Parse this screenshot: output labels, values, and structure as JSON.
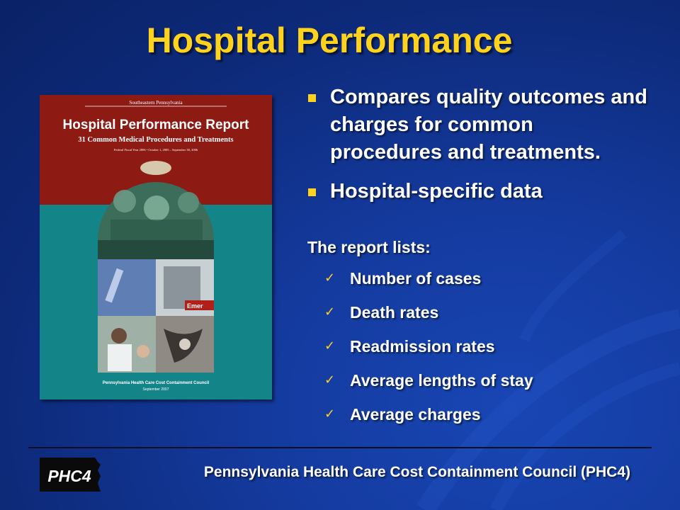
{
  "slide": {
    "title": "Hospital Performance",
    "bullets": [
      "Compares quality outcomes and charges for common procedures and treatments.",
      "Hospital-specific data"
    ],
    "lists_label": "The report lists:",
    "checklist": [
      "Number of cases",
      "Death rates",
      "Readmission rates",
      "Average lengths of stay",
      "Average charges"
    ],
    "footer": "Pennsylvania Health Care Cost Containment Council  (PHC4)"
  },
  "cover": {
    "region": "Southeastern Pennsylvania",
    "title": "Hospital Performance Report",
    "subtitle": "31 Common Medical Procedures and Treatments",
    "period": "Federal Fiscal Year 2006 • October 1, 2005 – September 30, 2006",
    "sign_text": "Emer",
    "publisher": "Pennsylvania Health Care Cost Containment Council",
    "date": "September 2007"
  },
  "logo": {
    "text": "PHC4"
  },
  "colors": {
    "title": "#ffd21e",
    "background": "#143a9e",
    "cover_red": "#8e1a14",
    "cover_teal": "#138488"
  }
}
